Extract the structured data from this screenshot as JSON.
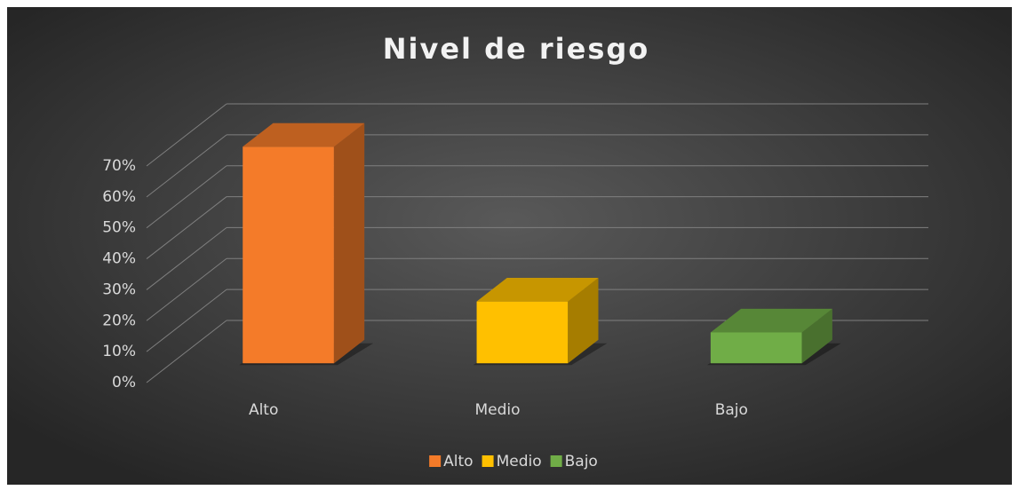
{
  "chart_data": {
    "type": "bar3d",
    "title": "Nivel de riesgo",
    "categories": [
      "Alto",
      "Medio",
      "Bajo"
    ],
    "values": [
      70,
      20,
      10
    ],
    "colors": [
      "#f47b29",
      "#ffc000",
      "#70ad47"
    ],
    "ylim": [
      0,
      70
    ],
    "yticks": [
      {
        "value": 0,
        "label": "0%"
      },
      {
        "value": 10,
        "label": "10%"
      },
      {
        "value": 20,
        "label": "20%"
      },
      {
        "value": 30,
        "label": "30%"
      },
      {
        "value": 40,
        "label": "40%"
      },
      {
        "value": 50,
        "label": "50%"
      },
      {
        "value": 60,
        "label": "60%"
      },
      {
        "value": 70,
        "label": "70%"
      }
    ],
    "grid": true,
    "legend": "bottom"
  }
}
